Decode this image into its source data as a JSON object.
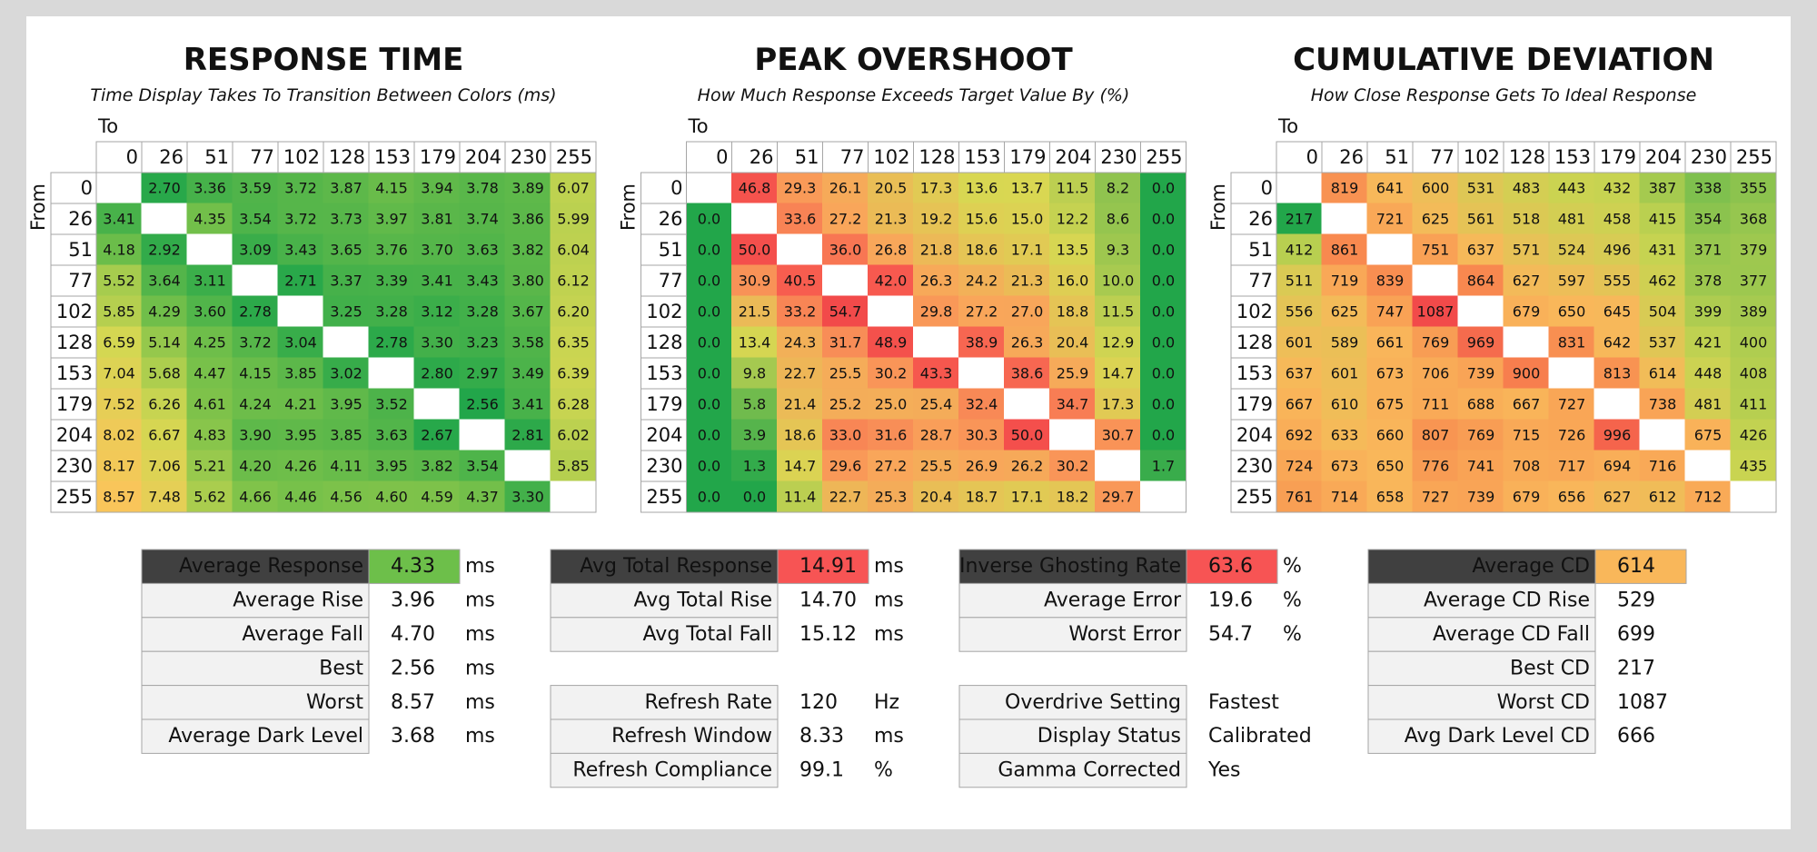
{
  "heatmaps": [
    {
      "title": "RESPONSE TIME",
      "subtitle": "Time Display Takes To Transition Between Colors (ms)",
      "to_label": "To",
      "from_label": "From",
      "levels": [
        0,
        26,
        51,
        77,
        102,
        128,
        153,
        179,
        204,
        230,
        255
      ],
      "colors": [
        "#22a64a",
        "#7cc24a",
        "#d4d752",
        "#f9c55a"
      ],
      "rows": [
        [
          null,
          "2.70",
          "3.36",
          "3.59",
          "3.72",
          "3.87",
          "4.15",
          "3.94",
          "3.78",
          "3.89",
          "6.07"
        ],
        [
          "3.41",
          null,
          "4.35",
          "3.54",
          "3.72",
          "3.73",
          "3.97",
          "3.81",
          "3.74",
          "3.86",
          "5.99"
        ],
        [
          "4.18",
          "2.92",
          null,
          "3.09",
          "3.43",
          "3.65",
          "3.76",
          "3.70",
          "3.63",
          "3.82",
          "6.04"
        ],
        [
          "5.52",
          "3.64",
          "3.11",
          null,
          "2.71",
          "3.37",
          "3.39",
          "3.41",
          "3.43",
          "3.80",
          "6.12"
        ],
        [
          "5.85",
          "4.29",
          "3.60",
          "2.78",
          null,
          "3.25",
          "3.28",
          "3.12",
          "3.28",
          "3.67",
          "6.20"
        ],
        [
          "6.59",
          "5.14",
          "4.25",
          "3.72",
          "3.04",
          null,
          "2.78",
          "3.30",
          "3.23",
          "3.58",
          "6.35"
        ],
        [
          "7.04",
          "5.68",
          "4.47",
          "4.15",
          "3.85",
          "3.02",
          null,
          "2.80",
          "2.97",
          "3.49",
          "6.39"
        ],
        [
          "7.52",
          "6.26",
          "4.61",
          "4.24",
          "4.21",
          "3.95",
          "3.52",
          null,
          "2.56",
          "3.41",
          "6.28"
        ],
        [
          "8.02",
          "6.67",
          "4.83",
          "3.90",
          "3.95",
          "3.85",
          "3.63",
          "2.67",
          null,
          "2.81",
          "6.02"
        ],
        [
          "8.17",
          "7.06",
          "5.21",
          "4.20",
          "4.26",
          "4.11",
          "3.95",
          "3.82",
          "3.54",
          null,
          "5.85"
        ],
        [
          "8.57",
          "7.48",
          "5.62",
          "4.66",
          "4.46",
          "4.56",
          "4.60",
          "4.59",
          "4.37",
          "3.30",
          null
        ]
      ]
    },
    {
      "title": "PEAK OVERSHOOT",
      "subtitle": "How Much Response Exceeds Target Value By (%)",
      "to_label": "To",
      "from_label": "From",
      "levels": [
        0,
        26,
        51,
        77,
        102,
        128,
        153,
        179,
        204,
        230,
        255
      ],
      "colors": [
        "#22a64a",
        "#d9d752",
        "#f9a55a",
        "#f75a4f",
        "#f24a4a"
      ],
      "rows": [
        [
          null,
          "46.8",
          "29.3",
          "26.1",
          "20.5",
          "17.3",
          "13.6",
          "13.7",
          "11.5",
          "8.2",
          "0.0"
        ],
        [
          "0.0",
          null,
          "33.6",
          "27.2",
          "21.3",
          "19.2",
          "15.6",
          "15.0",
          "12.2",
          "8.6",
          "0.0"
        ],
        [
          "0.0",
          "50.0",
          null,
          "36.0",
          "26.8",
          "21.8",
          "18.6",
          "17.1",
          "13.5",
          "9.3",
          "0.0"
        ],
        [
          "0.0",
          "30.9",
          "40.5",
          null,
          "42.0",
          "26.3",
          "24.2",
          "21.3",
          "16.0",
          "10.0",
          "0.0"
        ],
        [
          "0.0",
          "21.5",
          "33.2",
          "54.7",
          null,
          "29.8",
          "27.2",
          "27.0",
          "18.8",
          "11.5",
          "0.0"
        ],
        [
          "0.0",
          "13.4",
          "24.3",
          "31.7",
          "48.9",
          null,
          "38.9",
          "26.3",
          "20.4",
          "12.9",
          "0.0"
        ],
        [
          "0.0",
          "9.8",
          "22.7",
          "25.5",
          "30.2",
          "43.3",
          null,
          "38.6",
          "25.9",
          "14.7",
          "0.0"
        ],
        [
          "0.0",
          "5.8",
          "21.4",
          "25.2",
          "25.0",
          "25.4",
          "32.4",
          null,
          "34.7",
          "17.3",
          "0.0"
        ],
        [
          "0.0",
          "3.9",
          "18.6",
          "33.0",
          "31.6",
          "28.7",
          "30.3",
          "50.0",
          null,
          "30.7",
          "0.0"
        ],
        [
          "0.0",
          "1.3",
          "14.7",
          "29.6",
          "27.2",
          "25.5",
          "26.9",
          "26.2",
          "30.2",
          null,
          "1.7"
        ],
        [
          "0.0",
          "0.0",
          "11.4",
          "22.7",
          "25.3",
          "20.4",
          "18.7",
          "17.1",
          "18.2",
          "29.7",
          null
        ]
      ]
    },
    {
      "title": "CUMULATIVE DEVIATION",
      "subtitle": "How Close Response Gets To Ideal Response",
      "to_label": "To",
      "from_label": "From",
      "levels": [
        0,
        26,
        51,
        77,
        102,
        128,
        153,
        179,
        204,
        230,
        255
      ],
      "colors": [
        "#22a64a",
        "#c9d451",
        "#f9b75a",
        "#f8874f",
        "#f24a4a"
      ],
      "rows": [
        [
          null,
          819,
          641,
          600,
          531,
          483,
          443,
          432,
          387,
          338,
          355
        ],
        [
          217,
          null,
          721,
          625,
          561,
          518,
          481,
          458,
          415,
          354,
          368
        ],
        [
          412,
          861,
          null,
          751,
          637,
          571,
          524,
          496,
          431,
          371,
          379
        ],
        [
          511,
          719,
          839,
          null,
          864,
          627,
          597,
          555,
          462,
          378,
          377
        ],
        [
          556,
          625,
          747,
          1087,
          null,
          679,
          650,
          645,
          504,
          399,
          389
        ],
        [
          601,
          589,
          661,
          769,
          969,
          null,
          831,
          642,
          537,
          421,
          400
        ],
        [
          637,
          601,
          673,
          706,
          739,
          900,
          null,
          813,
          614,
          448,
          408
        ],
        [
          667,
          610,
          675,
          711,
          688,
          667,
          727,
          null,
          738,
          481,
          411
        ],
        [
          692,
          633,
          660,
          807,
          769,
          715,
          726,
          996,
          null,
          675,
          426
        ],
        [
          724,
          673,
          650,
          776,
          741,
          708,
          717,
          694,
          716,
          null,
          435
        ],
        [
          761,
          714,
          658,
          727,
          739,
          679,
          656,
          627,
          612,
          712,
          null
        ]
      ]
    }
  ],
  "summaries": [
    {
      "highlight": "#6dbf4a",
      "groups": [
        [
          {
            "label": "Average Response",
            "value": "4.33",
            "unit": "ms"
          },
          {
            "label": "Average Rise",
            "value": "3.96",
            "unit": "ms"
          },
          {
            "label": "Average Fall",
            "value": "4.70",
            "unit": "ms"
          },
          {
            "label": "Best",
            "value": "2.56",
            "unit": "ms"
          },
          {
            "label": "Worst",
            "value": "8.57",
            "unit": "ms"
          },
          {
            "label": "Average Dark Level",
            "value": "3.68",
            "unit": "ms"
          }
        ]
      ]
    },
    {
      "highlight": "#f75454",
      "groups": [
        [
          {
            "label": "Avg Total Response",
            "value": "14.91",
            "unit": "ms"
          },
          {
            "label": "Avg Total Rise",
            "value": "14.70",
            "unit": "ms"
          },
          {
            "label": "Avg Total Fall",
            "value": "15.12",
            "unit": "ms"
          }
        ],
        [
          {
            "label": "Refresh Rate",
            "value": "120",
            "unit": "Hz"
          },
          {
            "label": "Refresh Window",
            "value": "8.33",
            "unit": "ms"
          },
          {
            "label": "Refresh Compliance",
            "value": "99.1",
            "unit": "%"
          }
        ]
      ]
    },
    {
      "highlight": "#f75454",
      "groups": [
        [
          {
            "label": "Inverse Ghosting Rate",
            "value": "63.6",
            "unit": "%"
          },
          {
            "label": "Average Error",
            "value": "19.6",
            "unit": "%"
          },
          {
            "label": "Worst Error",
            "value": "54.7",
            "unit": "%"
          }
        ],
        [
          {
            "label": "Overdrive Setting",
            "value": "Fastest"
          },
          {
            "label": "Display Status",
            "value": "Calibrated"
          },
          {
            "label": "Gamma Corrected",
            "value": "Yes"
          }
        ]
      ]
    },
    {
      "highlight": "#f9b75a",
      "groups": [
        [
          {
            "label": "Average CD",
            "value": "614"
          },
          {
            "label": "Average CD Rise",
            "value": "529"
          },
          {
            "label": "Average CD Fall",
            "value": "699"
          },
          {
            "label": "Best CD",
            "value": "217"
          },
          {
            "label": "Worst CD",
            "value": "1087"
          },
          {
            "label": "Avg Dark Level CD",
            "value": "666"
          }
        ]
      ]
    }
  ]
}
